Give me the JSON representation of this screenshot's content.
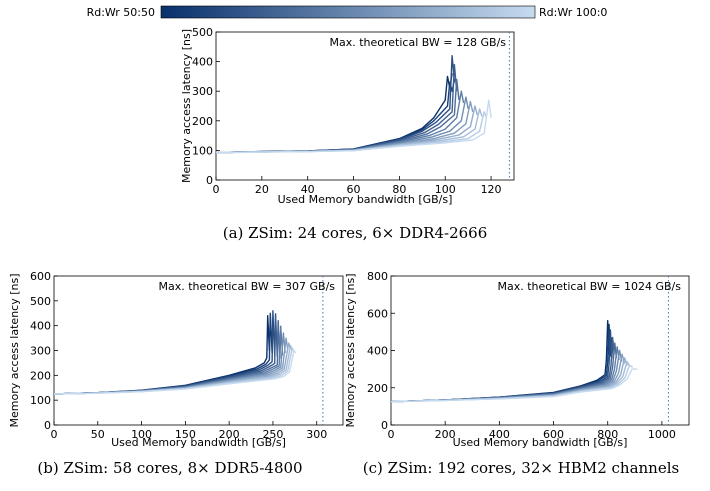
{
  "colorbar": {
    "left_label": "Rd:Wr 50:50",
    "right_label": "Rd:Wr 100:0",
    "color_dark": "#08306b",
    "color_light": "#c6dbef"
  },
  "chart_data": [
    {
      "type": "line",
      "xlabel": "Used Memory bandwidth [GB/s]",
      "ylabel": "Memory access latency [ns]",
      "annotation": "Max. theoretical BW = 128 GB/s",
      "max_bw_line": 128,
      "xlim": [
        0,
        130
      ],
      "ylim": [
        0,
        500
      ],
      "xticks": [
        0,
        20,
        40,
        60,
        80,
        100,
        120
      ],
      "yticks": [
        0,
        100,
        200,
        300,
        400,
        500
      ],
      "grid": false,
      "caption": "(a)  ZSim: 24 cores, 6× DDR4-2666",
      "series_count": 12,
      "series_style": "blue gradient from Rd:Wr 50:50 (dark) to Rd:Wr 100:0 (light)",
      "series": [
        {
          "x": [
            0,
            20,
            40,
            60,
            80,
            90,
            95,
            100,
            101,
            102,
            103
          ],
          "y": [
            93,
            96,
            98,
            105,
            140,
            175,
            210,
            270,
            350,
            310,
            360
          ]
        },
        {
          "x": [
            0,
            20,
            40,
            60,
            80,
            90,
            95,
            101,
            102,
            103,
            104
          ],
          "y": [
            93,
            96,
            98,
            104,
            138,
            170,
            200,
            250,
            330,
            300,
            340
          ]
        },
        {
          "x": [
            0,
            20,
            40,
            60,
            80,
            90,
            96,
            102,
            103,
            104
          ],
          "y": [
            93,
            96,
            98,
            104,
            136,
            165,
            195,
            240,
            420,
            330
          ]
        },
        {
          "x": [
            0,
            20,
            40,
            60,
            80,
            91,
            97,
            103,
            104,
            105
          ],
          "y": [
            93,
            95,
            97,
            103,
            133,
            160,
            188,
            230,
            390,
            300
          ]
        },
        {
          "x": [
            0,
            20,
            40,
            60,
            80,
            92,
            98,
            104,
            105,
            106
          ],
          "y": [
            93,
            95,
            97,
            102,
            130,
            155,
            180,
            220,
            340,
            270
          ]
        },
        {
          "x": [
            0,
            20,
            40,
            60,
            80,
            93,
            100,
            105,
            107,
            108
          ],
          "y": [
            93,
            95,
            97,
            102,
            128,
            150,
            172,
            210,
            300,
            260
          ]
        },
        {
          "x": [
            0,
            20,
            40,
            60,
            80,
            94,
            102,
            107,
            109,
            110
          ],
          "y": [
            93,
            95,
            97,
            101,
            125,
            145,
            165,
            200,
            280,
            240
          ]
        },
        {
          "x": [
            0,
            20,
            40,
            60,
            80,
            95,
            104,
            109,
            111,
            112
          ],
          "y": [
            93,
            95,
            97,
            101,
            122,
            140,
            158,
            190,
            265,
            230
          ]
        },
        {
          "x": [
            0,
            20,
            40,
            60,
            80,
            96,
            106,
            111,
            113,
            114
          ],
          "y": [
            93,
            95,
            97,
            100,
            120,
            136,
            152,
            180,
            250,
            220
          ]
        },
        {
          "x": [
            0,
            20,
            40,
            60,
            80,
            97,
            108,
            113,
            115,
            116
          ],
          "y": [
            93,
            95,
            96,
            100,
            118,
            132,
            146,
            172,
            240,
            215
          ]
        },
        {
          "x": [
            0,
            20,
            40,
            60,
            80,
            98,
            110,
            115,
            117,
            118
          ],
          "y": [
            93,
            95,
            96,
            99,
            116,
            128,
            140,
            165,
            230,
            210
          ]
        },
        {
          "x": [
            0,
            20,
            40,
            60,
            80,
            99,
            112,
            117,
            119,
            120
          ],
          "y": [
            93,
            94,
            96,
            99,
            114,
            125,
            135,
            158,
            270,
            210
          ]
        }
      ]
    },
    {
      "type": "line",
      "xlabel": "Used Memory bandwidth [GB/s]",
      "ylabel": "Memory access latency [ns]",
      "annotation": "Max. theoretical BW = 307 GB/s",
      "max_bw_line": 307,
      "xlim": [
        0,
        330
      ],
      "ylim": [
        0,
        600
      ],
      "xticks": [
        0,
        50,
        100,
        150,
        200,
        250,
        300
      ],
      "yticks": [
        0,
        100,
        200,
        300,
        400,
        500,
        600
      ],
      "grid": false,
      "caption": "(b)  ZSim: 58 cores, 8× DDR5-4800",
      "series_count": 12,
      "series_style": "blue gradient from Rd:Wr 50:50 (dark) to Rd:Wr 100:0 (light)",
      "series": [
        {
          "x": [
            0,
            50,
            100,
            150,
            200,
            230,
            240,
            243,
            244,
            246,
            247
          ],
          "y": [
            125,
            130,
            140,
            160,
            200,
            230,
            250,
            270,
            440,
            300,
            420
          ]
        },
        {
          "x": [
            0,
            50,
            100,
            150,
            200,
            232,
            242,
            246,
            247,
            249,
            250
          ],
          "y": [
            125,
            130,
            139,
            158,
            197,
            226,
            245,
            262,
            450,
            290,
            430
          ]
        },
        {
          "x": [
            0,
            50,
            100,
            150,
            200,
            234,
            244,
            249,
            250,
            252,
            253
          ],
          "y": [
            125,
            130,
            139,
            157,
            194,
            222,
            240,
            255,
            460,
            280,
            450
          ]
        },
        {
          "x": [
            0,
            50,
            100,
            150,
            200,
            236,
            246,
            252,
            253,
            255,
            256
          ],
          "y": [
            125,
            130,
            138,
            155,
            190,
            218,
            235,
            248,
            440,
            275,
            420
          ]
        },
        {
          "x": [
            0,
            50,
            100,
            150,
            200,
            238,
            248,
            255,
            256,
            258,
            259
          ],
          "y": [
            125,
            130,
            138,
            154,
            187,
            214,
            230,
            242,
            420,
            270,
            400
          ]
        },
        {
          "x": [
            0,
            50,
            100,
            150,
            200,
            240,
            250,
            257,
            259,
            261
          ],
          "y": [
            125,
            129,
            137,
            152,
            184,
            210,
            225,
            238,
            390,
            280
          ]
        },
        {
          "x": [
            0,
            50,
            100,
            150,
            200,
            242,
            252,
            259,
            262,
            264
          ],
          "y": [
            125,
            129,
            137,
            151,
            181,
            206,
            220,
            234,
            370,
            290
          ]
        },
        {
          "x": [
            0,
            50,
            100,
            150,
            200,
            244,
            254,
            261,
            265,
            267
          ],
          "y": [
            125,
            129,
            136,
            150,
            178,
            202,
            215,
            230,
            350,
            300
          ]
        },
        {
          "x": [
            0,
            50,
            100,
            150,
            200,
            246,
            256,
            263,
            268,
            270
          ],
          "y": [
            125,
            129,
            136,
            148,
            175,
            198,
            210,
            226,
            330,
            305
          ]
        },
        {
          "x": [
            0,
            50,
            100,
            150,
            200,
            248,
            258,
            265,
            270,
            272
          ],
          "y": [
            125,
            129,
            135,
            147,
            172,
            194,
            205,
            222,
            320,
            300
          ]
        },
        {
          "x": [
            0,
            50,
            100,
            150,
            200,
            250,
            260,
            267,
            272,
            274
          ],
          "y": [
            125,
            128,
            135,
            146,
            169,
            190,
            200,
            218,
            310,
            295
          ]
        },
        {
          "x": [
            0,
            50,
            100,
            150,
            200,
            252,
            262,
            269,
            274,
            276
          ],
          "y": [
            125,
            128,
            134,
            145,
            166,
            186,
            195,
            214,
            300,
            290
          ]
        }
      ]
    },
    {
      "type": "line",
      "xlabel": "Used Memory bandwidth [GB/s]",
      "ylabel": "Memory access latency [ns]",
      "annotation": "Max. theoretical BW = 1024 GB/s",
      "max_bw_line": 1024,
      "xlim": [
        0,
        1100
      ],
      "ylim": [
        0,
        800
      ],
      "xticks": [
        0,
        200,
        400,
        600,
        800,
        1000
      ],
      "yticks": [
        0,
        200,
        400,
        600,
        800
      ],
      "grid": false,
      "caption": "(c)  ZSim: 192 cores, 32× HBM2 channels",
      "series_count": 12,
      "series_style": "blue gradient from Rd:Wr 50:50 (dark) to Rd:Wr 100:0 (light)",
      "series": [
        {
          "x": [
            0,
            200,
            400,
            600,
            700,
            760,
            790,
            795,
            800,
            805,
            810
          ],
          "y": [
            125,
            135,
            150,
            175,
            210,
            240,
            270,
            350,
            560,
            380,
            500
          ]
        },
        {
          "x": [
            0,
            200,
            400,
            600,
            700,
            765,
            795,
            800,
            805,
            810,
            815
          ],
          "y": [
            125,
            135,
            149,
            173,
            207,
            236,
            265,
            340,
            540,
            370,
            470
          ]
        },
        {
          "x": [
            0,
            200,
            400,
            600,
            700,
            770,
            800,
            805,
            810,
            815,
            820
          ],
          "y": [
            125,
            135,
            149,
            171,
            204,
            232,
            260,
            330,
            510,
            360,
            450
          ]
        },
        {
          "x": [
            0,
            200,
            400,
            600,
            700,
            775,
            805,
            812,
            818,
            824
          ],
          "y": [
            125,
            134,
            148,
            169,
            201,
            228,
            255,
            320,
            470,
            380
          ]
        },
        {
          "x": [
            0,
            200,
            400,
            600,
            700,
            780,
            810,
            818,
            826,
            832
          ],
          "y": [
            125,
            134,
            147,
            167,
            198,
            224,
            250,
            310,
            440,
            360
          ]
        },
        {
          "x": [
            0,
            200,
            400,
            600,
            700,
            785,
            815,
            825,
            835,
            842
          ],
          "y": [
            125,
            134,
            146,
            165,
            195,
            220,
            245,
            300,
            420,
            350
          ]
        },
        {
          "x": [
            0,
            200,
            400,
            600,
            700,
            790,
            820,
            832,
            844,
            852
          ],
          "y": [
            125,
            133,
            145,
            163,
            192,
            216,
            240,
            290,
            400,
            340
          ]
        },
        {
          "x": [
            0,
            200,
            400,
            600,
            700,
            795,
            825,
            840,
            853,
            862
          ],
          "y": [
            125,
            133,
            144,
            161,
            189,
            212,
            235,
            280,
            380,
            330
          ]
        },
        {
          "x": [
            0,
            200,
            400,
            600,
            700,
            800,
            830,
            848,
            862,
            872
          ],
          "y": [
            125,
            133,
            143,
            159,
            186,
            208,
            230,
            270,
            360,
            320
          ]
        },
        {
          "x": [
            0,
            200,
            400,
            600,
            700,
            805,
            835,
            856,
            871,
            882
          ],
          "y": [
            125,
            132,
            142,
            157,
            183,
            204,
            225,
            262,
            340,
            315
          ]
        },
        {
          "x": [
            0,
            200,
            400,
            600,
            700,
            810,
            840,
            864,
            880,
            892
          ],
          "y": [
            125,
            132,
            141,
            155,
            180,
            200,
            220,
            255,
            320,
            310
          ]
        },
        {
          "x": [
            0,
            200,
            400,
            600,
            700,
            815,
            845,
            872,
            890,
            910
          ],
          "y": [
            125,
            132,
            140,
            153,
            177,
            196,
            215,
            248,
            300,
            300
          ]
        }
      ]
    }
  ]
}
